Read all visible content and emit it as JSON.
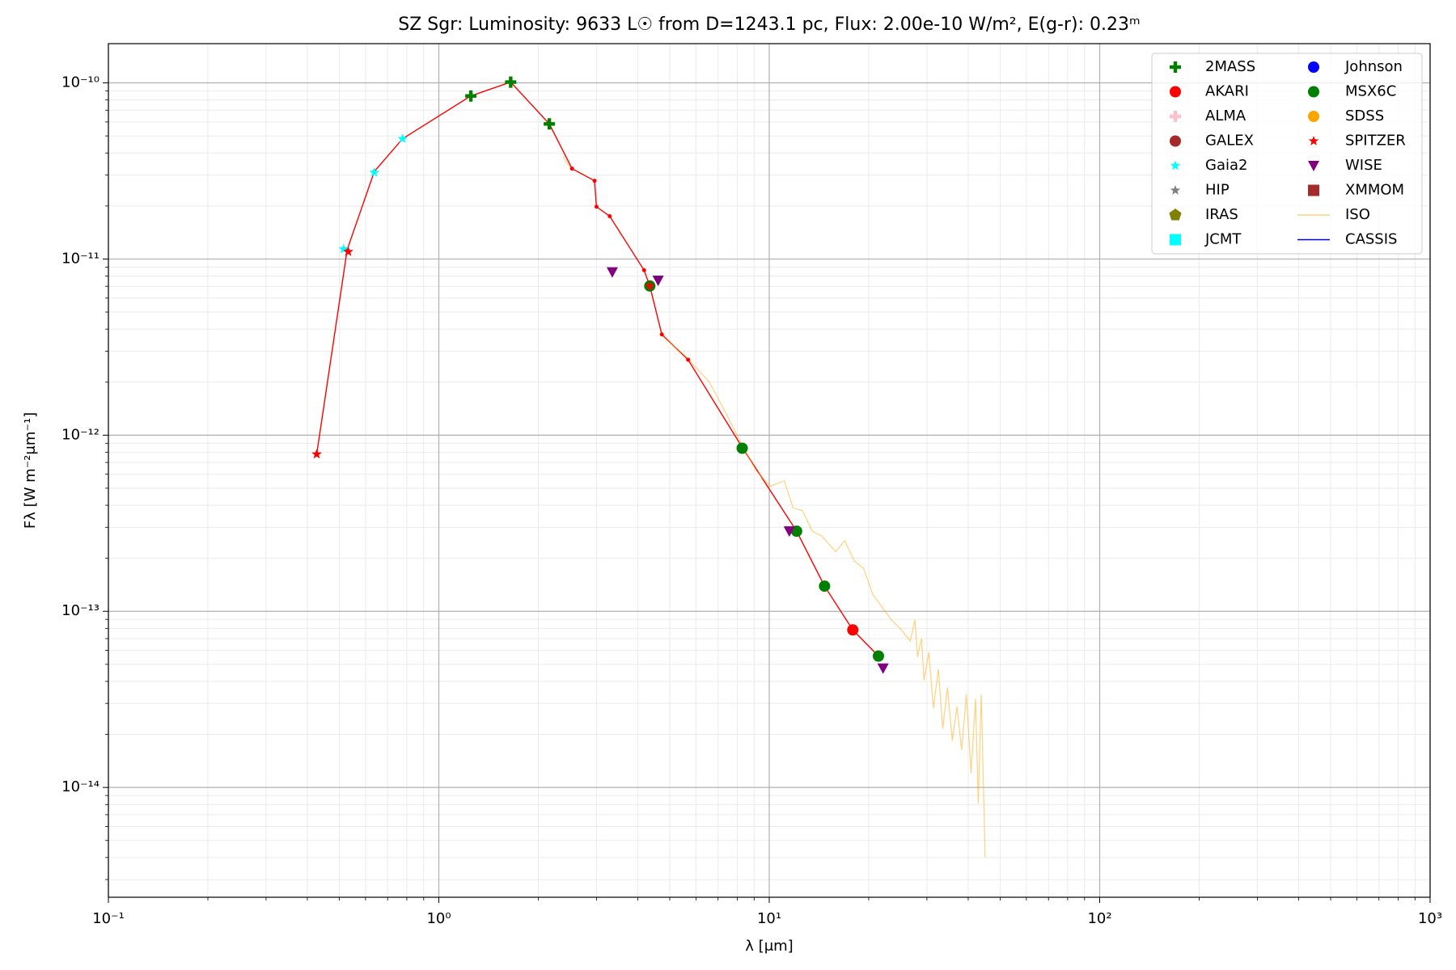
{
  "chart_data": {
    "type": "scatter",
    "title": "SZ Sgr:  Luminosity: 9633 L☉ from D=1243.1 pc, Flux: 2.00e-10 W/m², E(g-r): 0.23ᵐ",
    "xlabel": "λ [μm]",
    "ylabel": "Fλ [W m⁻²μm⁻¹]",
    "xscale": "log",
    "yscale": "log",
    "xlim": [
      0.1,
      1000
    ],
    "ylim": [
      2.38e-15,
      1.67e-10
    ],
    "xticks": [
      {
        "value": 0.1,
        "label": "10⁻¹"
      },
      {
        "value": 1,
        "label": "10⁰"
      },
      {
        "value": 10,
        "label": "10¹"
      },
      {
        "value": 100,
        "label": "10²"
      },
      {
        "value": 1000,
        "label": "10³"
      }
    ],
    "yticks": [
      {
        "value": 1e-14,
        "label": "10⁻¹⁴"
      },
      {
        "value": 1e-13,
        "label": "10⁻¹³"
      },
      {
        "value": 1e-12,
        "label": "10⁻¹²"
      },
      {
        "value": 1e-11,
        "label": "10⁻¹¹"
      },
      {
        "value": 1e-10,
        "label": "10⁻¹⁰"
      }
    ],
    "xminorticks": [
      0.2,
      0.3,
      0.4,
      0.5,
      0.6,
      0.7,
      0.8,
      0.9,
      2,
      3,
      4,
      5,
      6,
      7,
      8,
      9,
      20,
      30,
      40,
      50,
      60,
      70,
      80,
      90,
      200,
      300,
      400,
      500,
      600,
      700,
      800,
      900
    ],
    "yminorticks": [
      3e-15,
      4e-15,
      5e-15,
      6e-15,
      7e-15,
      8e-15,
      9e-15,
      2e-14,
      3e-14,
      4e-14,
      5e-14,
      6e-14,
      7e-14,
      8e-14,
      9e-14,
      2e-13,
      3e-13,
      4e-13,
      5e-13,
      6e-13,
      7e-13,
      8e-13,
      9e-13,
      2e-12,
      3e-12,
      4e-12,
      5e-12,
      6e-12,
      7e-12,
      8e-12,
      9e-12,
      2e-11,
      3e-11,
      4e-11,
      5e-11,
      6e-11,
      7e-11,
      8e-11,
      9e-11
    ],
    "grid": true,
    "minor_grid": true,
    "legend": {
      "loc": "upper right",
      "ncol": 2
    },
    "series": [
      {
        "color": "red",
        "marker": ".",
        "linestyle": "-",
        "x": [
          0.427,
          0.528,
          0.638,
          0.777,
          1.25,
          1.65,
          2.16,
          2.53,
          2.96,
          3.0,
          3.29,
          4.18,
          4.35,
          4.73,
          5.68,
          8.28,
          12.1,
          14.7,
          17.9,
          21.4
        ],
        "values": [
          7.8e-13,
          1.13e-11,
          3.14e-11,
          4.82e-11,
          8.43e-11,
          1.01e-10,
          5.85e-11,
          3.26e-11,
          2.78e-11,
          1.98e-11,
          1.75e-11,
          8.64e-12,
          7.03e-12,
          3.73e-12,
          2.68e-12,
          8.53e-13,
          2.85e-13,
          1.39e-13,
          7.84e-14,
          5.57e-14
        ]
      },
      {
        "name": "ISO",
        "color": "orange",
        "linestyle": "-",
        "alpha": 0.5,
        "x": [
          2.376,
          2.52,
          null,
          4.8,
          5.61,
          6.59,
          7.51,
          8.28,
          9.13,
          10.07,
          11.1,
          11.8,
          12.6,
          13.5,
          14.4,
          15.9,
          16.9,
          18.1,
          19.3,
          20.6,
          22.0,
          23.4,
          25.0,
          26.7,
          27.6,
          28.1,
          28.9,
          29.4,
          30.4,
          31.4,
          32.5,
          33.5,
          34.6,
          35.8,
          37.0,
          38.2,
          39.5,
          40.8,
          42.1,
          42.9,
          43.8,
          44.4,
          45.0
        ],
        "values": [
          3.82e-11,
          3.22e-11,
          null,
          3.59e-12,
          2.78e-12,
          2e-12,
          1.26e-12,
          8.75e-13,
          6.29e-13,
          5.12e-13,
          5.51e-13,
          3.87e-13,
          3.73e-13,
          2.85e-13,
          2.68e-13,
          2.18e-13,
          2.52e-13,
          1.93e-13,
          1.75e-13,
          1.24e-13,
          1.05e-13,
          8.96e-14,
          7.93e-14,
          6.78e-14,
          8.96e-14,
          5.51e-14,
          7.03e-14,
          4.06e-14,
          5.85e-14,
          2.82e-14,
          4.7e-14,
          2.15e-14,
          3.68e-14,
          1.84e-14,
          2.88e-14,
          1.63e-14,
          3.38e-14,
          1.2e-14,
          3.18e-14,
          8.13e-15,
          3.38e-14,
          1.2e-14,
          4.01e-15
        ]
      },
      {
        "name": "CASSIS",
        "color": "blue",
        "linestyle": "-",
        "x": [],
        "values": []
      },
      {
        "name": "2MASS",
        "color": "green",
        "marker": "P",
        "x": [
          1.25,
          1.65,
          2.16
        ],
        "values": [
          8.43e-11,
          1.01e-10,
          5.85e-11
        ]
      },
      {
        "name": "AKARI",
        "color": "red",
        "marker": "o",
        "x": [
          17.9
        ],
        "values": [
          7.84e-14
        ]
      },
      {
        "name": "ALMA",
        "color": "pink",
        "marker": "P",
        "x": [],
        "values": []
      },
      {
        "name": "GALEX",
        "color": "brown",
        "marker": "o",
        "x": [],
        "values": []
      },
      {
        "name": "Gaia2",
        "color": "cyan",
        "marker": "*",
        "x": [
          0.515,
          0.638,
          0.777
        ],
        "values": [
          1.14e-11,
          3.1e-11,
          4.82e-11
        ]
      },
      {
        "name": "HIP",
        "color": "grey",
        "marker": "*",
        "x": [
          0.427,
          0.532
        ],
        "values": [
          7.8e-13,
          1.1e-11
        ]
      },
      {
        "name": "IRAS",
        "color": "olive",
        "marker": "p",
        "x": [],
        "values": []
      },
      {
        "name": "JCMT",
        "color": "cyan",
        "marker": "s",
        "x": [],
        "values": []
      },
      {
        "name": "Johnson",
        "color": "blue",
        "marker": "o",
        "x": [],
        "values": []
      },
      {
        "name": "MSX6C",
        "color": "green",
        "marker": "o",
        "x": [
          4.35,
          8.28,
          12.1,
          14.7,
          21.4
        ],
        "values": [
          7.03e-12,
          8.43e-13,
          2.85e-13,
          1.39e-13,
          5.57e-14
        ]
      },
      {
        "name": "SDSS",
        "color": "orange",
        "marker": "o",
        "x": [],
        "values": []
      },
      {
        "name": "SPITZER",
        "color": "red",
        "marker": "*",
        "x": [
          0.427,
          0.532,
          4.35
        ],
        "values": [
          7.8e-13,
          1.1e-11,
          7.03e-12
        ]
      },
      {
        "name": "WISE",
        "color": "purple",
        "marker": "v",
        "x": [
          3.35,
          4.61,
          11.5,
          22.1
        ],
        "values": [
          8.43e-12,
          7.55e-12,
          2.85e-13,
          4.75e-14
        ]
      },
      {
        "name": "XMMOM",
        "color": "brown",
        "marker": "s",
        "x": [],
        "values": []
      }
    ],
    "legend_order": [
      "chart_data.series.3.name",
      "chart_data.series.4.name",
      "chart_data.series.5.name",
      "chart_data.series.6.name",
      "chart_data.series.7.name",
      "chart_data.series.8.name",
      "chart_data.series.9.name",
      "chart_data.series.10.name",
      "chart_data.series.11.name",
      "chart_data.series.12.name",
      "chart_data.series.13.name",
      "chart_data.series.14.name",
      "chart_data.series.15.name",
      "chart_data.series.16.name",
      "chart_data.series.1.name",
      "chart_data.series.2.name"
    ]
  }
}
